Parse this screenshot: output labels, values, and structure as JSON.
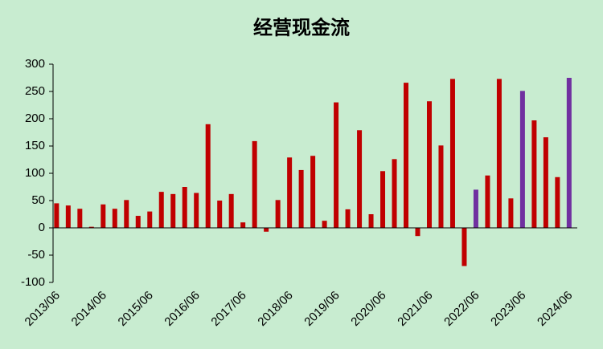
{
  "chart_data": {
    "type": "bar",
    "title": "经营现金流",
    "categories": [
      "2013/06",
      null,
      null,
      null,
      "2014/06",
      null,
      null,
      null,
      "2015/06",
      null,
      null,
      null,
      "2016/06",
      null,
      null,
      null,
      "2017/06",
      null,
      null,
      null,
      "2018/06",
      null,
      null,
      null,
      "2019/06",
      null,
      null,
      null,
      "2020/06",
      null,
      null,
      null,
      "2021/06",
      null,
      null,
      null,
      "2022/06",
      null,
      null,
      null,
      "2023/06",
      null,
      null,
      null,
      "2024/06"
    ],
    "values": [
      45,
      41,
      35,
      2,
      43,
      35,
      51,
      22,
      30,
      66,
      62,
      75,
      64,
      190,
      50,
      62,
      10,
      159,
      -7,
      51,
      129,
      106,
      132,
      13,
      230,
      34,
      179,
      25,
      104,
      126,
      266,
      -15,
      232,
      151,
      273,
      -70,
      70,
      96,
      273,
      54,
      251,
      197,
      166,
      93,
      275
    ],
    "colors": [
      "#c00000",
      "#c00000",
      "#c00000",
      "#c00000",
      "#c00000",
      "#c00000",
      "#c00000",
      "#c00000",
      "#c00000",
      "#c00000",
      "#c00000",
      "#c00000",
      "#c00000",
      "#c00000",
      "#c00000",
      "#c00000",
      "#c00000",
      "#c00000",
      "#c00000",
      "#c00000",
      "#c00000",
      "#c00000",
      "#c00000",
      "#c00000",
      "#c00000",
      "#c00000",
      "#c00000",
      "#c00000",
      "#c00000",
      "#c00000",
      "#c00000",
      "#c00000",
      "#c00000",
      "#c00000",
      "#c00000",
      "#c00000",
      "#7030a0",
      "#c00000",
      "#c00000",
      "#c00000",
      "#7030a0",
      "#c00000",
      "#c00000",
      "#c00000",
      "#7030a0"
    ],
    "ylim": [
      -100,
      300
    ],
    "yticks": [
      -100,
      -50,
      0,
      50,
      100,
      150,
      200,
      250,
      300
    ],
    "grid": false
  }
}
